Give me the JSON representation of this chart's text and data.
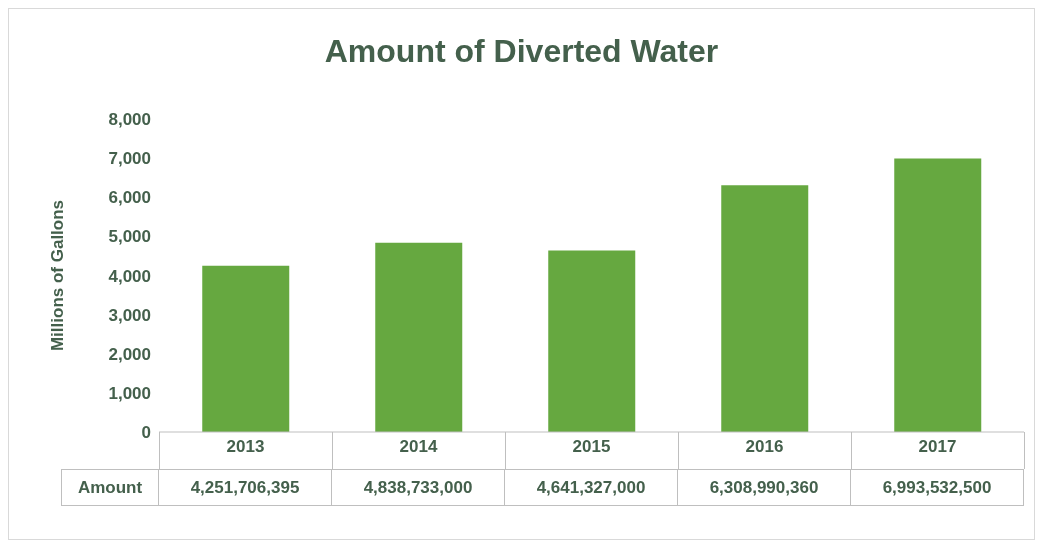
{
  "chart_data": {
    "type": "bar",
    "title": "Amount of Diverted Water",
    "ylabel": "Millions of Gallons",
    "categories": [
      "2013",
      "2014",
      "2015",
      "2016",
      "2017"
    ],
    "series": [
      {
        "name": "Amount",
        "color": "#66a840",
        "values": [
          4251.706395,
          4838.733,
          4641.327,
          6308.99036,
          6993.5325
        ]
      }
    ],
    "annotations": [
      "4,251,706,395",
      "4,838,733,000",
      "4,641,327,000",
      "6,308,990,360",
      "6,993,532,500"
    ],
    "ylim": [
      0,
      8000
    ],
    "yticks": [
      0,
      {
        "value": 1000,
        "label": "1,000"
      },
      {
        "value": 2000,
        "label": "2,000"
      },
      {
        "value": 3000,
        "label": "3,000"
      },
      {
        "value": 4000,
        "label": "4,000"
      },
      {
        "value": 5000,
        "label": "5,000"
      },
      {
        "value": 6000,
        "label": "6,000"
      },
      {
        "value": 7000,
        "label": "7,000"
      },
      {
        "value": 8000,
        "label": "8,000"
      }
    ],
    "grid": false,
    "legend": false
  }
}
